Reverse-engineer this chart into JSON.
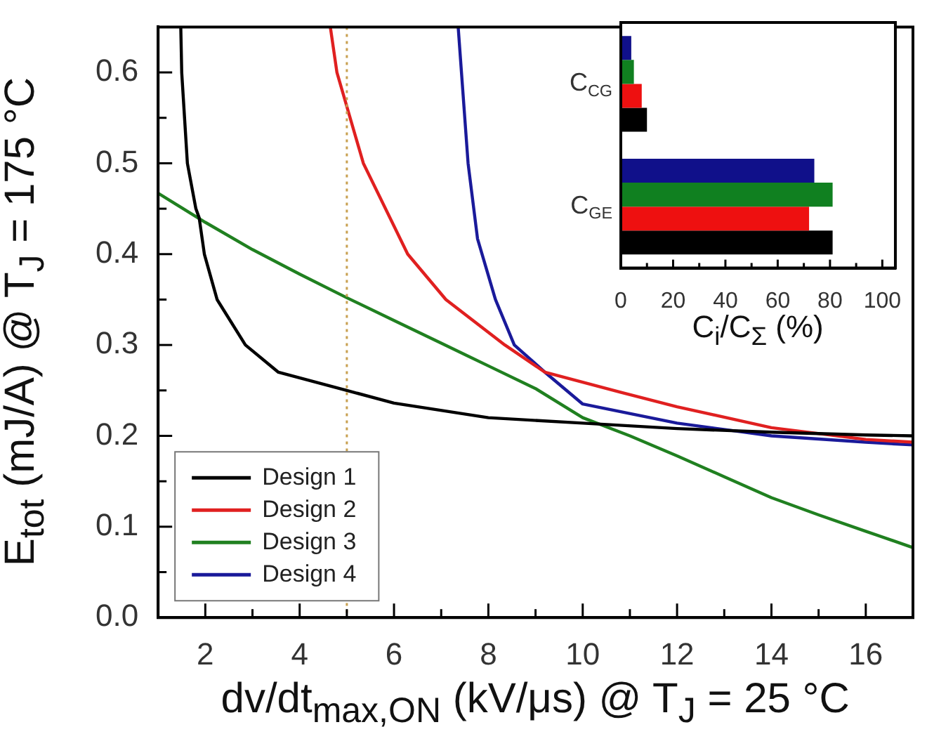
{
  "chart_data": [
    {
      "type": "line",
      "xlabel": "dv/dt$_{max,ON}$ (kV/μs) @ T$_{J}$ = 25 °C",
      "ylabel": "E$_{tot}$ (mJ/A) @ T$_{J}$ = 175 °C",
      "xlim": [
        1,
        17
      ],
      "ylim": [
        0,
        0.65
      ],
      "xticks": [
        2,
        {
          "value": 3,
          "label": null
        },
        4,
        {
          "value": 5,
          "label": null
        },
        6,
        {
          "value": 7,
          "label": null
        },
        8,
        {
          "value": 9,
          "label": null
        },
        10,
        {
          "value": 11,
          "label": null
        },
        12,
        {
          "value": 13,
          "label": null
        },
        14,
        {
          "value": 15,
          "label": null
        },
        16
      ],
      "yticks": [
        {
          "value": 0,
          "label": "0.0"
        },
        {
          "value": 0.05,
          "label": null
        },
        0.1,
        {
          "value": 0.15,
          "label": null
        },
        0.2,
        {
          "value": 0.25,
          "label": null
        },
        0.3,
        {
          "value": 0.35,
          "label": null
        },
        0.4,
        {
          "value": 0.45,
          "label": null
        },
        0.5,
        {
          "value": 0.55,
          "label": null
        },
        0.6
      ],
      "legend": "bottom left",
      "marker": "none",
      "line_style": "solid",
      "ref_lines": [
        {
          "axis": "x",
          "value": 5,
          "label": null,
          "color": "#c8a050",
          "line_style": "dotted"
        }
      ],
      "series": [
        {
          "name": "Design 1",
          "color": "#000000",
          "x": [
            1.48,
            1.5,
            1.56,
            1.62,
            1.8,
            1.87,
            1.98,
            2.25,
            2.85,
            3.55,
            5,
            6,
            8,
            10,
            12,
            14,
            16,
            17
          ],
          "values": [
            0.65,
            0.6,
            0.55,
            0.5,
            0.45,
            0.44,
            0.4,
            0.35,
            0.3,
            0.27,
            0.25,
            0.236,
            0.22,
            0.214,
            0.208,
            0.204,
            0.201,
            0.2
          ]
        },
        {
          "name": "Design 2",
          "color": "#e02020",
          "x": [
            4.65,
            4.79,
            5.35,
            6.29,
            7.1,
            8.35,
            9.2,
            10.8,
            12,
            14,
            16,
            17
          ],
          "values": [
            0.65,
            0.6,
            0.5,
            0.4,
            0.35,
            0.3,
            0.27,
            0.248,
            0.232,
            0.209,
            0.196,
            0.193
          ]
        },
        {
          "name": "Design 3",
          "color": "#208020",
          "x": [
            1,
            2,
            3,
            4,
            5,
            6,
            7,
            8,
            9,
            10,
            11,
            12,
            13,
            14,
            15,
            16,
            17
          ],
          "values": [
            0.467,
            0.435,
            0.405,
            0.378,
            0.352,
            0.327,
            0.302,
            0.277,
            0.252,
            0.22,
            0.2,
            0.178,
            0.155,
            0.132,
            0.113,
            0.095,
            0.077
          ]
        },
        {
          "name": "Design 4",
          "color": "#1a1a9a",
          "x": [
            7.36,
            7.43,
            7.57,
            7.77,
            8.15,
            8.55,
            9.2,
            10,
            12,
            14,
            16,
            17
          ],
          "values": [
            0.65,
            0.6,
            0.5,
            0.417,
            0.35,
            0.3,
            0.27,
            0.235,
            0.214,
            0.2,
            0.193,
            0.19
          ]
        }
      ]
    },
    {
      "type": "bar",
      "orientation": "horizontal",
      "categories": [
        "C$_{CG}$",
        "C$_{GE}$"
      ],
      "xlabel": "C$_{i}$/C$_{Σ}$ (%)",
      "xlim": [
        0,
        105
      ],
      "xticks": [
        0,
        {
          "value": 10,
          "label": null
        },
        20,
        {
          "value": 30,
          "label": null
        },
        40,
        {
          "value": 50,
          "label": null
        },
        60,
        {
          "value": 70,
          "label": null
        },
        80,
        {
          "value": 90,
          "label": null
        },
        100
      ],
      "series": [
        {
          "color": "#10108a",
          "values": [
            4,
            74
          ]
        },
        {
          "color": "#108020",
          "values": [
            5,
            81
          ]
        },
        {
          "color": "#ee1010",
          "values": [
            8,
            72
          ]
        },
        {
          "color": "#000000",
          "values": [
            10,
            81
          ]
        }
      ]
    }
  ]
}
